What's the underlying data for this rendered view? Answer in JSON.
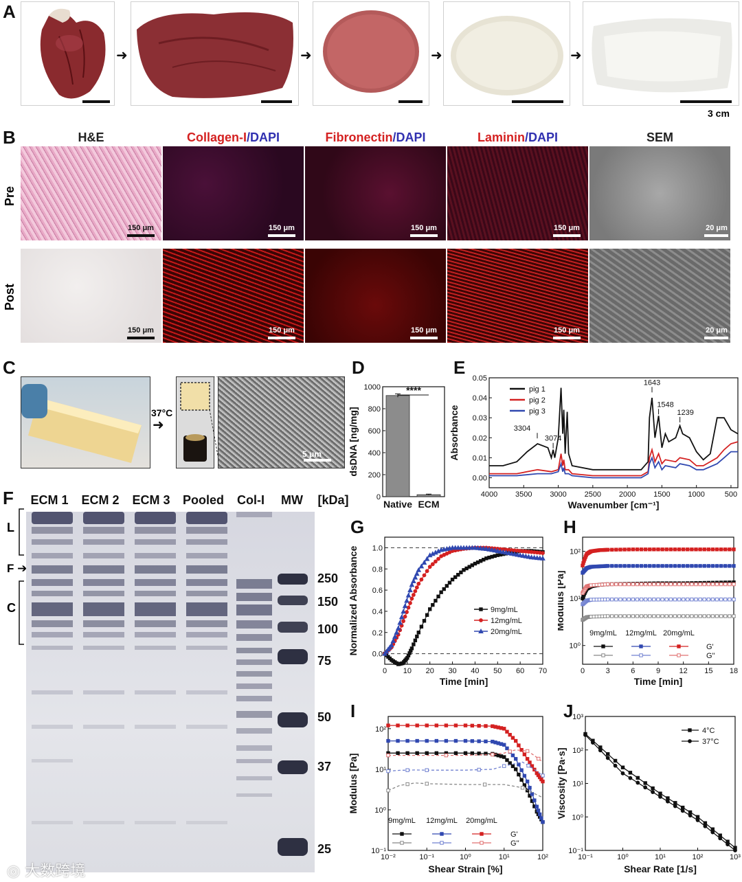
{
  "panel_labels": {
    "A": "A",
    "B": "B",
    "C": "C",
    "D": "D",
    "E": "E",
    "F": "F",
    "G": "G",
    "H": "H",
    "I": "I",
    "J": "J"
  },
  "panelA": {
    "scale_label": "3 cm"
  },
  "panelB": {
    "headers": [
      {
        "pre": "H&E",
        "post": ""
      },
      {
        "pre": "Collagen-I",
        "post": "/DAPI"
      },
      {
        "pre": "Fibronectin",
        "post": "/DAPI"
      },
      {
        "pre": "Laminin",
        "post": "/DAPI"
      },
      {
        "pre": "SEM",
        "post": ""
      }
    ],
    "row_labels": [
      "Pre",
      "Post"
    ],
    "scalebars": [
      "150 μm",
      "150 μm",
      "150 μm",
      "150 μm",
      "20 μm"
    ]
  },
  "panelC": {
    "temp_label": "37°C",
    "scale_label": "5 μm"
  },
  "panelF": {
    "lanes": [
      "ECM 1",
      "ECM 2",
      "ECM 3",
      "Pooled",
      "Col-I",
      "MW",
      "[kDa]"
    ],
    "side_labels": [
      "L",
      "F",
      "C"
    ],
    "mw_marks": [
      "250",
      "150",
      "100",
      "75",
      "50",
      "37",
      "25"
    ]
  },
  "watermark": "大数跨境",
  "chart_data": [
    {
      "panel": "D",
      "type": "bar",
      "categories": [
        "Native",
        "ECM"
      ],
      "values": [
        920,
        18
      ],
      "errors": [
        15,
        5
      ],
      "ylabel": "dsDNA [ng/mg]",
      "ylim": [
        0,
        1000
      ],
      "yticks": [
        "0",
        "200",
        "400",
        "600",
        "800",
        "1000"
      ],
      "significance": "****",
      "colors": {
        "bar": "#8c8c8c"
      }
    },
    {
      "panel": "E",
      "type": "line",
      "xlabel": "Wavenumber [cm⁻¹]",
      "ylabel": "Absorbance",
      "xlim": [
        4000,
        400
      ],
      "ylim": [
        -0.005,
        0.05
      ],
      "xticks": [
        "4000",
        "3500",
        "3000",
        "2500",
        "2000",
        "1500",
        "1000",
        "500"
      ],
      "yticks": [
        "0.00",
        "0.01",
        "0.02",
        "0.03",
        "0.04",
        "0.05"
      ],
      "series": [
        {
          "name": "pig 1",
          "color": "#111111",
          "x": [
            4000,
            3800,
            3600,
            3450,
            3300,
            3150,
            3100,
            3074,
            3050,
            3000,
            2960,
            2935,
            2920,
            2900,
            2870,
            2850,
            2800,
            2500,
            2000,
            1800,
            1700,
            1680,
            1643,
            1600,
            1548,
            1500,
            1450,
            1400,
            1300,
            1239,
            1200,
            1100,
            1000,
            900,
            800,
            700,
            600,
            500,
            400
          ],
          "y": [
            0.006,
            0.006,
            0.008,
            0.013,
            0.017,
            0.015,
            0.01,
            0.014,
            0.01,
            0.02,
            0.045,
            0.022,
            0.034,
            0.012,
            0.033,
            0.012,
            0.006,
            0.004,
            0.004,
            0.004,
            0.008,
            0.03,
            0.04,
            0.02,
            0.031,
            0.015,
            0.022,
            0.018,
            0.02,
            0.026,
            0.022,
            0.02,
            0.013,
            0.009,
            0.012,
            0.03,
            0.03,
            0.024,
            0.022
          ]
        },
        {
          "name": "pig 2",
          "color": "#d42121",
          "x": [
            4000,
            3600,
            3300,
            3100,
            3000,
            2960,
            2935,
            2920,
            2900,
            2850,
            2800,
            2500,
            2000,
            1800,
            1700,
            1680,
            1643,
            1600,
            1548,
            1500,
            1450,
            1300,
            1239,
            1100,
            1000,
            900,
            700,
            600,
            500,
            400
          ],
          "y": [
            0.002,
            0.002,
            0.004,
            0.003,
            0.004,
            0.012,
            0.006,
            0.009,
            0.004,
            0.004,
            0.002,
            0.001,
            0.001,
            0.001,
            0.003,
            0.01,
            0.014,
            0.008,
            0.012,
            0.007,
            0.009,
            0.008,
            0.01,
            0.009,
            0.006,
            0.006,
            0.01,
            0.014,
            0.017,
            0.018
          ]
        },
        {
          "name": "pig 3",
          "color": "#3048b0",
          "x": [
            4000,
            3600,
            3300,
            3100,
            3000,
            2960,
            2935,
            2920,
            2900,
            2850,
            2800,
            2500,
            2000,
            1800,
            1700,
            1680,
            1643,
            1600,
            1548,
            1500,
            1450,
            1300,
            1239,
            1100,
            1000,
            900,
            700,
            600,
            500,
            400
          ],
          "y": [
            0.001,
            0.001,
            0.002,
            0.002,
            0.003,
            0.007,
            0.003,
            0.005,
            0.002,
            0.002,
            0.001,
            0.0,
            0.0,
            0.0,
            0.002,
            0.007,
            0.01,
            0.005,
            0.008,
            0.004,
            0.006,
            0.005,
            0.007,
            0.006,
            0.004,
            0.004,
            0.007,
            0.01,
            0.013,
            0.013
          ]
        }
      ],
      "annotations": [
        "3304",
        "3074",
        "1643",
        "1548",
        "1239"
      ]
    },
    {
      "panel": "G",
      "type": "line",
      "xlabel": "Time [min]",
      "ylabel": "Normalized Absorbance",
      "xlim": [
        0,
        70
      ],
      "ylim": [
        -0.1,
        1.1
      ],
      "xticks": [
        "0",
        "10",
        "20",
        "30",
        "40",
        "50",
        "60",
        "70"
      ],
      "yticks": [
        "0.0",
        "0.2",
        "0.4",
        "0.6",
        "0.8",
        "1.0"
      ],
      "series": [
        {
          "name": "9mg/mL",
          "color": "#111111",
          "x": [
            0,
            3,
            6,
            8,
            10,
            12,
            15,
            20,
            25,
            30,
            35,
            40,
            45,
            50,
            55,
            60,
            65,
            70
          ],
          "y": [
            0,
            -0.06,
            -0.1,
            -0.09,
            -0.04,
            0.05,
            0.2,
            0.42,
            0.58,
            0.7,
            0.79,
            0.85,
            0.9,
            0.93,
            0.95,
            0.97,
            0.97,
            0.96
          ]
        },
        {
          "name": "12mg/mL",
          "color": "#d42121",
          "x": [
            0,
            3,
            6,
            9,
            12,
            15,
            20,
            25,
            30,
            35,
            40,
            45,
            50,
            55,
            60,
            65,
            70
          ],
          "y": [
            0,
            0.06,
            0.18,
            0.35,
            0.52,
            0.66,
            0.82,
            0.92,
            0.97,
            0.99,
            1.0,
            1.0,
            0.99,
            0.98,
            0.97,
            0.96,
            0.95
          ]
        },
        {
          "name": "20mg/mL",
          "color": "#3048b0",
          "x": [
            0,
            3,
            6,
            9,
            12,
            15,
            20,
            25,
            30,
            35,
            40,
            45,
            50,
            55,
            60,
            65,
            70
          ],
          "y": [
            0,
            0.08,
            0.24,
            0.45,
            0.65,
            0.79,
            0.93,
            0.98,
            1.0,
            1.0,
            1.0,
            0.99,
            0.97,
            0.95,
            0.93,
            0.91,
            0.9
          ]
        }
      ]
    },
    {
      "panel": "H",
      "type": "line",
      "scale": "log-y",
      "xlabel": "Time [min]",
      "ylabel": "Modulus [Pa]",
      "xlim": [
        0,
        18
      ],
      "ylim": [
        0.4,
        200
      ],
      "xticks": [
        "0",
        "3",
        "6",
        "9",
        "12",
        "15",
        "18"
      ],
      "yticks": [
        "10⁰",
        "10¹",
        "10²"
      ],
      "legend_header": [
        "9mg/mL",
        "12mg/mL",
        "20mg/mL"
      ],
      "legend_rows": [
        "G'",
        "G''"
      ],
      "series": [
        {
          "name": "9mg/mL G'",
          "color": "#111111",
          "x": [
            0,
            0.5,
            1,
            2,
            3,
            6,
            9,
            12,
            15,
            18
          ],
          "y": [
            10,
            16,
            18,
            19.5,
            20,
            20.5,
            21,
            21,
            21.5,
            22
          ]
        },
        {
          "name": "12mg/mL G'",
          "color": "#3048b0",
          "x": [
            0,
            0.5,
            1,
            2,
            3,
            6,
            9,
            12,
            15,
            18
          ],
          "y": [
            35,
            44,
            47,
            48,
            49,
            49,
            49,
            49,
            49,
            49
          ]
        },
        {
          "name": "20mg/mL G'",
          "color": "#d42121",
          "x": [
            0,
            0.5,
            1,
            2,
            3,
            6,
            9,
            12,
            15,
            18
          ],
          "y": [
            50,
            88,
            100,
            106,
            108,
            110,
            110,
            110,
            110,
            110
          ]
        },
        {
          "name": "9mg/mL G''",
          "color": "#888888",
          "x": [
            0,
            0.5,
            1,
            3,
            6,
            9,
            12,
            15,
            18
          ],
          "y": [
            3.5,
            4.0,
            4.1,
            4.2,
            4.2,
            4.2,
            4.2,
            4.2,
            4.2
          ]
        },
        {
          "name": "12mg/mL G''",
          "color": "#7080d0",
          "x": [
            0,
            0.5,
            1,
            3,
            6,
            9,
            12,
            15,
            18
          ],
          "y": [
            7.5,
            9.0,
            9.4,
            9.5,
            9.5,
            9.5,
            9.5,
            9.5,
            9.5
          ]
        },
        {
          "name": "20mg/mL G''",
          "color": "#e07070",
          "x": [
            0,
            0.5,
            1,
            3,
            6,
            9,
            12,
            15,
            18
          ],
          "y": [
            13,
            18,
            19,
            20,
            20,
            20,
            20,
            20,
            20
          ]
        }
      ]
    },
    {
      "panel": "I",
      "type": "line",
      "scale": "log-log",
      "xlabel": "Shear Strain [%]",
      "ylabel": "Modulus [Pa]",
      "xlim": [
        0.01,
        100
      ],
      "ylim": [
        0.1,
        200
      ],
      "xticks": [
        "10⁻²",
        "10⁻¹",
        "10⁰",
        "10¹",
        "10²"
      ],
      "yticks": [
        "10⁻¹",
        "10⁰",
        "10¹",
        "10²"
      ],
      "legend_header": [
        "9mg/mL",
        "12mg/mL",
        "20mg/mL"
      ],
      "legend_rows": [
        "G'",
        "G''"
      ],
      "series": [
        {
          "name": "9mg/mL G'",
          "color": "#111111",
          "x": [
            0.01,
            0.1,
            1,
            5,
            10,
            20,
            40,
            70,
            100
          ],
          "y": [
            25,
            25,
            25,
            24,
            20,
            10,
            3,
            0.9,
            0.5
          ]
        },
        {
          "name": "12mg/mL G'",
          "color": "#3048b0",
          "x": [
            0.01,
            0.1,
            1,
            5,
            10,
            20,
            40,
            70,
            100
          ],
          "y": [
            50,
            50,
            50,
            48,
            40,
            18,
            5,
            1.2,
            0.5
          ]
        },
        {
          "name": "20mg/mL G'",
          "color": "#d42121",
          "x": [
            0.01,
            0.1,
            1,
            5,
            10,
            20,
            40,
            70,
            100
          ],
          "y": [
            120,
            120,
            120,
            115,
            100,
            50,
            18,
            8,
            5
          ]
        },
        {
          "name": "9mg/mL G''",
          "color": "#888888",
          "x": [
            0.01,
            0.02,
            0.05,
            0.1,
            1,
            10,
            30,
            100
          ],
          "y": [
            3,
            4,
            4.6,
            4.4,
            4.2,
            4.2,
            3.5,
            2
          ]
        },
        {
          "name": "12mg/mL G''",
          "color": "#7080d0",
          "x": [
            0.01,
            0.02,
            0.05,
            0.1,
            1,
            5,
            10,
            30,
            60,
            100
          ],
          "y": [
            9,
            9.4,
            9.6,
            9.5,
            9.5,
            10,
            12,
            15,
            10,
            7
          ]
        },
        {
          "name": "20mg/mL G''",
          "color": "#e07070",
          "x": [
            0.01,
            0.1,
            1,
            5,
            10,
            20,
            40,
            60,
            100
          ],
          "y": [
            22,
            22,
            22,
            23,
            25,
            30,
            28,
            22,
            15
          ]
        }
      ]
    },
    {
      "panel": "J",
      "type": "line",
      "scale": "log-log",
      "xlabel": "Shear Rate [1/s]",
      "ylabel": "Viscosity [Pa·s]",
      "xlim": [
        0.1,
        1000
      ],
      "ylim": [
        0.1,
        1000
      ],
      "xticks": [
        "10⁻¹",
        "10⁰",
        "10¹",
        "10²",
        "10³"
      ],
      "yticks": [
        "10⁻¹",
        "10⁰",
        "10¹",
        "10²",
        "10³"
      ],
      "series": [
        {
          "name": "4°C",
          "color": "#111111",
          "marker": "square",
          "x": [
            0.1,
            1,
            10,
            100,
            1000
          ],
          "y": [
            300,
            30,
            5,
            1,
            0.12
          ]
        },
        {
          "name": "37°C",
          "color": "#111111",
          "marker": "circle",
          "x": [
            0.1,
            1,
            10,
            100,
            1000
          ],
          "y": [
            280,
            20,
            4,
            0.8,
            0.1
          ]
        }
      ]
    }
  ]
}
